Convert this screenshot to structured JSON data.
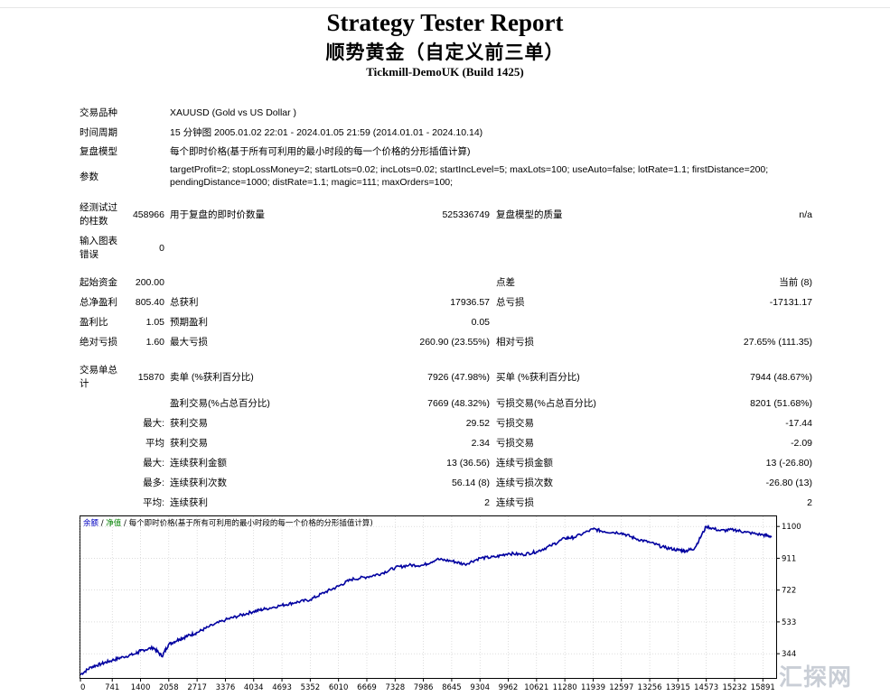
{
  "header": {
    "title": "Strategy Tester Report",
    "ea_name": "顺势黄金（自定义前三单）",
    "server": "Tickmill-DemoUK (Build 1425)"
  },
  "info": {
    "symbol_label": "交易品种",
    "symbol_value": "XAUUSD (Gold vs US Dollar )",
    "period_label": "时间周期",
    "period_value": "15 分钟图 2005.01.02 22:01 - 2024.01.05 21:59 (2014.01.01 - 2024.10.14)",
    "model_label": "复盘模型",
    "model_value": "每个即时价格(基于所有可利用的最小时段的每一个价格的分形插值计算)",
    "params_label": "参数",
    "params_value": "targetProfit=2; stopLossMoney=2; startLots=0.02; incLots=0.02; startIncLevel=5; maxLots=100; useAuto=false; lotRate=1.1; firstDistance=200; pendingDistance=1000; distRate=1.1; magic=111; maxOrders=100;"
  },
  "bars": {
    "bars_label": "经测试过的柱数",
    "bars_value": "458966",
    "ticks_label": "用于复盘的即时价数量",
    "ticks_value": "525336749",
    "quality_label": "复盘模型的质量",
    "quality_value": "n/a",
    "errors_label": "输入图表错误",
    "errors_value": "0"
  },
  "stats": {
    "initial_label": "起始资金",
    "initial_value": "200.00",
    "spread_label": "点差",
    "spread_value": "当前 (8)",
    "net_label": "总净盈利",
    "net_value": "805.40",
    "gross_profit_label": "总获利",
    "gross_profit_value": "17936.57",
    "gross_loss_label": "总亏损",
    "gross_loss_value": "-17131.17",
    "pf_label": "盈利比",
    "pf_value": "1.05",
    "expected_label": "预期盈利",
    "expected_value": "0.05",
    "abs_dd_label": "绝对亏损",
    "abs_dd_value": "1.60",
    "max_dd_label": "最大亏损",
    "max_dd_value": "260.90 (23.55%)",
    "rel_dd_label": "相对亏损",
    "rel_dd_value": "27.65% (111.35)",
    "trades_label": "交易单总计",
    "trades_value": "15870",
    "short_label": "卖单 (%获利百分比)",
    "short_value": "7926 (47.98%)",
    "long_label": "买单 (%获利百分比)",
    "long_value": "7944 (48.67%)",
    "profit_trades_label": "盈利交易(%占总百分比)",
    "profit_trades_value": "7669 (48.32%)",
    "loss_trades_label": "亏损交易(%占总百分比)",
    "loss_trades_value": "8201 (51.68%)",
    "largest_prefix": "最大:",
    "largest_profit_label": "获利交易",
    "largest_profit_value": "29.52",
    "largest_loss_label": "亏损交易",
    "largest_loss_value": "-17.44",
    "average_prefix": "平均",
    "avg_profit_label": "获利交易",
    "avg_profit_value": "2.34",
    "avg_loss_label": "亏损交易",
    "avg_loss_value": "-2.09",
    "max_prefix": "最大:",
    "max_cons_wins_amt_label": "连续获利金额",
    "max_cons_wins_amt_value": "13 (36.56)",
    "max_cons_loss_amt_label": "连续亏损金额",
    "max_cons_loss_amt_value": "13 (-26.80)",
    "maxmost_prefix": "最多:",
    "max_cons_profit_label": "连续获利次数",
    "max_cons_profit_value": "56.14 (8)",
    "max_cons_loss_label": "连续亏损次数",
    "max_cons_loss_value": "-26.80 (13)",
    "avg_cons_prefix": "平均:",
    "avg_cons_wins_label": "连续获利",
    "avg_cons_wins_value": "2",
    "avg_cons_losses_label": "连续亏损",
    "avg_cons_losses_value": "2"
  },
  "chart_data": {
    "type": "line",
    "legend": {
      "balance": "余额",
      "separator": "/",
      "equity": "净值",
      "separator2": "/",
      "model": "每个即时价格(基于所有可利用的最小时段的每一个价格的分形插值计算)"
    },
    "x_ticks": [
      0,
      741,
      1400,
      2058,
      2717,
      3376,
      4034,
      4693,
      5352,
      6010,
      6669,
      7328,
      7986,
      8645,
      9304,
      9962,
      10621,
      11280,
      11939,
      12597,
      13256,
      13915,
      14573,
      15232,
      15891
    ],
    "y_ticks": [
      1100,
      911,
      722,
      533,
      344
    ],
    "xlim": [
      0,
      16200
    ],
    "ylim": [
      200,
      1160
    ],
    "series": [
      {
        "color_balance": "#0000a0",
        "x": [
          0,
          250,
          500,
          741,
          1000,
          1300,
          1400,
          1700,
          1900,
          2058,
          2300,
          2500,
          2717,
          3000,
          3376,
          3700,
          4034,
          4300,
          4693,
          5000,
          5352,
          5700,
          6010,
          6300,
          6669,
          7000,
          7328,
          7650,
          7986,
          8300,
          8645,
          8950,
          9304,
          9650,
          9962,
          10300,
          10621,
          10950,
          11280,
          11500,
          11939,
          12200,
          12597,
          12900,
          13256,
          13600,
          13915,
          14100,
          14300,
          14573,
          14900,
          15232,
          15500,
          15891,
          16100
        ],
        "y": [
          220,
          265,
          285,
          305,
          325,
          345,
          362,
          380,
          330,
          400,
          430,
          450,
          470,
          505,
          545,
          570,
          595,
          610,
          632,
          648,
          665,
          710,
          745,
          785,
          800,
          820,
          855,
          870,
          870,
          905,
          895,
          875,
          912,
          918,
          940,
          933,
          950,
          985,
          1030,
          1035,
          1085,
          1070,
          1062,
          1030,
          1005,
          975,
          960,
          955,
          970,
          1100,
          1075,
          1080,
          1065,
          1050,
          1040
        ]
      }
    ]
  }
}
